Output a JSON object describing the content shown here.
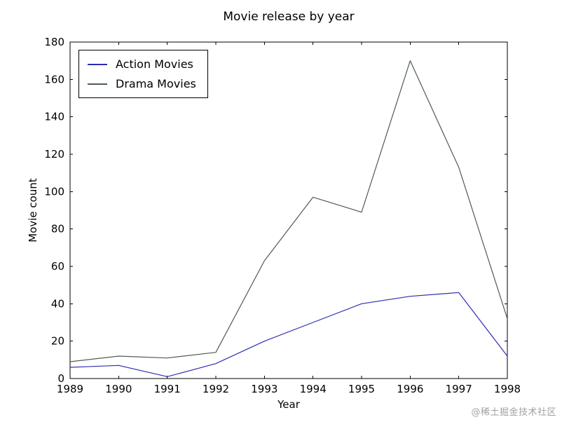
{
  "watermark": {
    "text": "@稀土掘金技术社区"
  },
  "chart_data": {
    "type": "line",
    "title": "Movie release by year",
    "xlabel": "Year",
    "ylabel": "Movie count",
    "categories": [
      "1989",
      "1990",
      "1991",
      "1992",
      "1993",
      "1994",
      "1995",
      "1996",
      "1997",
      "1998"
    ],
    "series": [
      {
        "name": "Action Movies",
        "color": "#2d2db3",
        "values": [
          6,
          7,
          1,
          8,
          20,
          30,
          40,
          44,
          46,
          12
        ]
      },
      {
        "name": "Drama Movies",
        "color": "#4d5d50",
        "values": [
          9,
          12,
          11,
          14,
          63,
          97,
          89,
          170,
          113,
          32
        ]
      }
    ],
    "ylim": [
      0,
      180
    ],
    "yticks": [
      0,
      20,
      40,
      60,
      80,
      100,
      120,
      140,
      160,
      180
    ],
    "grid": false,
    "legend_position": "upper left",
    "axis_color": "#000000",
    "text_color": "#000000"
  }
}
